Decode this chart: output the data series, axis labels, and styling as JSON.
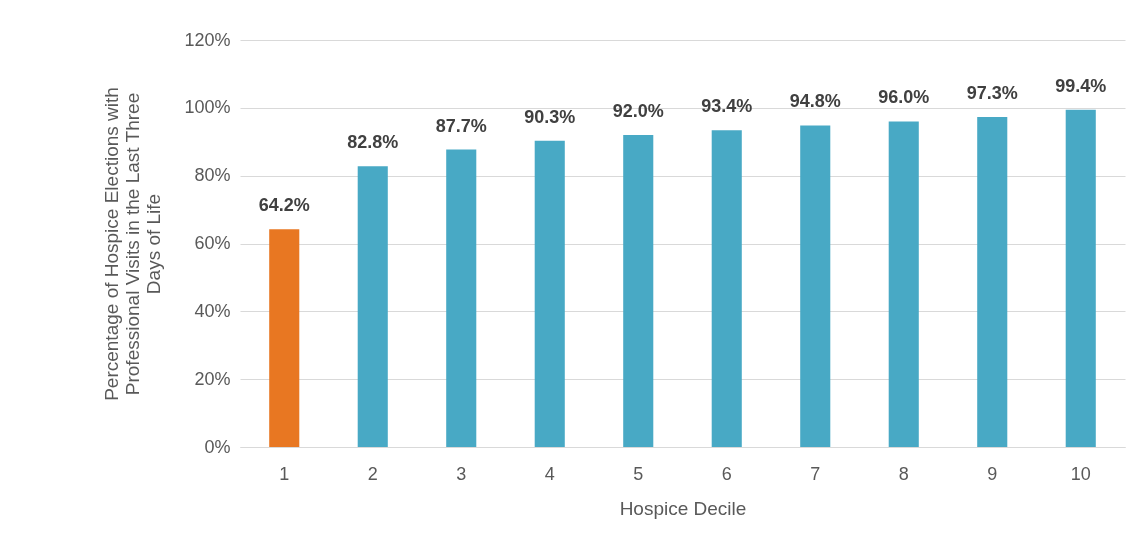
{
  "chart_data": {
    "type": "bar",
    "xlabel": "Hospice Decile",
    "ylabel": "Percentage of Hospice Elections with Professional Visits in the Last Three Days of Life",
    "categories": [
      "1",
      "2",
      "3",
      "4",
      "5",
      "6",
      "7",
      "8",
      "9",
      "10"
    ],
    "values": [
      64.2,
      82.8,
      87.7,
      90.3,
      92.0,
      93.4,
      94.8,
      96.0,
      97.3,
      99.4
    ],
    "colors": [
      "#e87722",
      "#48a9c5",
      "#48a9c5",
      "#48a9c5",
      "#48a9c5",
      "#48a9c5",
      "#48a9c5",
      "#48a9c5",
      "#48a9c5",
      "#48a9c5"
    ],
    "value_labels": [
      "64.2%",
      "82.8%",
      "87.7%",
      "90.3%",
      "92.0%",
      "93.4%",
      "94.8%",
      "96.0%",
      "97.3%",
      "99.4%"
    ],
    "ylim": [
      0,
      120
    ],
    "yticks": [
      {
        "value": 0,
        "label": "0%"
      },
      {
        "value": 20,
        "label": "20%"
      },
      {
        "value": 40,
        "label": "40%"
      },
      {
        "value": 60,
        "label": "60%"
      },
      {
        "value": 80,
        "label": "80%"
      },
      {
        "value": 100,
        "label": "100%"
      },
      {
        "value": 120,
        "label": "120%"
      }
    ],
    "grid": "y"
  }
}
